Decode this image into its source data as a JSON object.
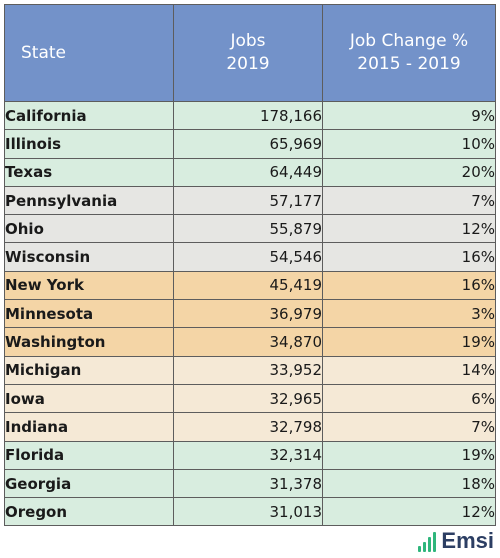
{
  "table": {
    "headers": {
      "state": "State",
      "jobs_line1": "Jobs",
      "jobs_line2": "2019",
      "change_line1": "Job Change %",
      "change_line2": "2015 - 2019"
    },
    "rows": [
      {
        "state": "California",
        "jobs": "178,166",
        "change": "9%",
        "group": "green"
      },
      {
        "state": "Illinois",
        "jobs": "65,969",
        "change": "10%",
        "group": "green"
      },
      {
        "state": "Texas",
        "jobs": "64,449",
        "change": "20%",
        "group": "green"
      },
      {
        "state": "Pennsylvania",
        "jobs": "57,177",
        "change": "7%",
        "group": "gray"
      },
      {
        "state": "Ohio",
        "jobs": "55,879",
        "change": "12%",
        "group": "gray"
      },
      {
        "state": "Wisconsin",
        "jobs": "54,546",
        "change": "16%",
        "group": "gray"
      },
      {
        "state": "New York",
        "jobs": "45,419",
        "change": "16%",
        "group": "orange"
      },
      {
        "state": "Minnesota",
        "jobs": "36,979",
        "change": "3%",
        "group": "orange"
      },
      {
        "state": "Washington",
        "jobs": "34,870",
        "change": "19%",
        "group": "orange"
      },
      {
        "state": "Michigan",
        "jobs": "33,952",
        "change": "14%",
        "group": "beige"
      },
      {
        "state": "Iowa",
        "jobs": "32,965",
        "change": "6%",
        "group": "beige"
      },
      {
        "state": "Indiana",
        "jobs": "32,798",
        "change": "7%",
        "group": "beige"
      },
      {
        "state": "Florida",
        "jobs": "32,314",
        "change": "19%",
        "group": "green"
      },
      {
        "state": "Georgia",
        "jobs": "31,378",
        "change": "18%",
        "group": "green"
      },
      {
        "state": "Oregon",
        "jobs": "31,013",
        "change": "12%",
        "group": "green"
      }
    ]
  },
  "logo": {
    "text": "Emsi",
    "icon": "bar-chart-icon"
  },
  "colors": {
    "header": "#7392c9",
    "green": "#d8eddf",
    "gray": "#e6e6e3",
    "orange": "#f4d5a6",
    "beige": "#f5e9d6",
    "logo_accent": "#2fb67c",
    "logo_text": "#2c3e63"
  }
}
